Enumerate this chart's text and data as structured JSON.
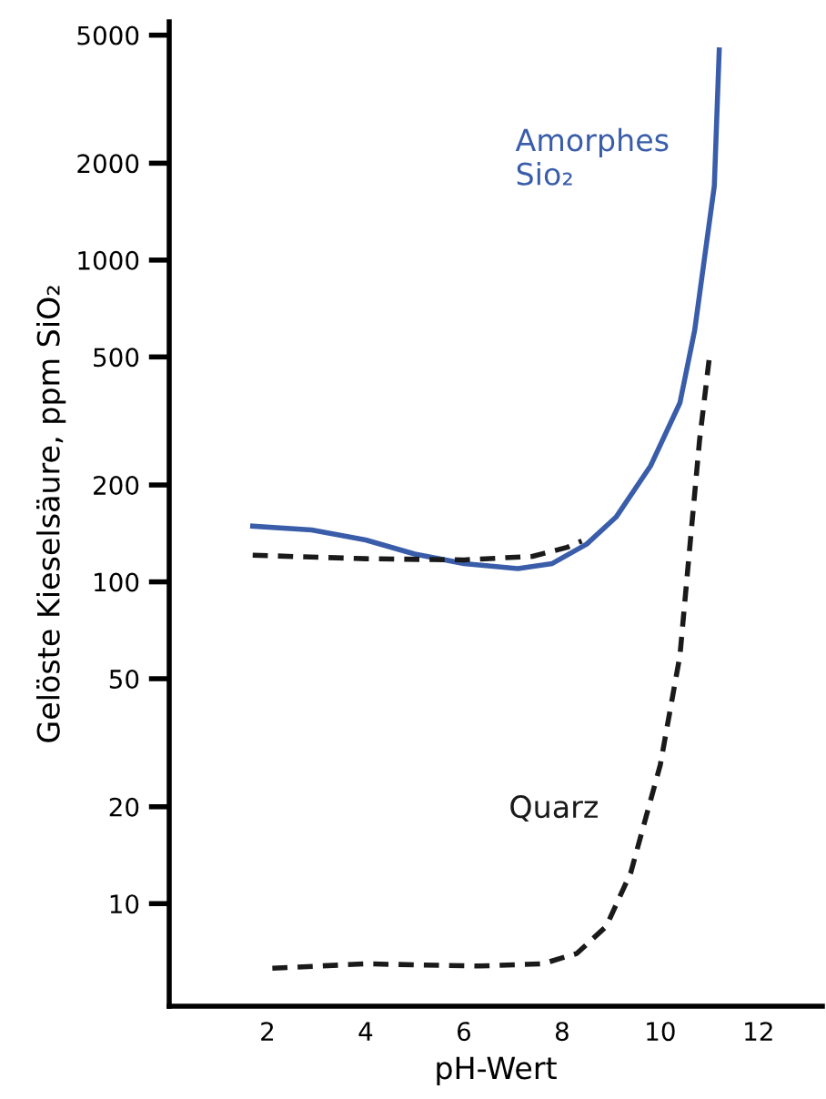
{
  "chart_data": {
    "type": "line",
    "xlabel": "pH-Wert",
    "ylabel": "Gelöste Kieselsäure, ppm SiO₂",
    "log": "y",
    "xlim": [
      0,
      13.3
    ],
    "ylim": [
      4.8,
      5500
    ],
    "xticks": [
      2,
      4,
      6,
      8,
      10,
      12
    ],
    "yticks": [
      10,
      20,
      50,
      100,
      200,
      500,
      1000,
      2000,
      5000
    ],
    "grid": false,
    "legend": false,
    "series": [
      {
        "name": "Amorphes\nSio₂",
        "color": "#3a5daa",
        "line_style": "solid",
        "x": [
          1.7,
          2.9,
          4.0,
          5.0,
          6.0,
          7.1,
          7.8,
          8.5,
          9.1,
          9.8,
          10.4,
          10.7,
          11.1,
          11.2
        ],
        "values": [
          149,
          145,
          135,
          122,
          114,
          110,
          114,
          131,
          159,
          229,
          360,
          605,
          1700,
          4500
        ]
      },
      {
        "color": "#1a1a1a",
        "line_style": "dashed",
        "x": [
          1.7,
          4.0,
          6.0,
          7.4,
          8.1,
          8.4
        ],
        "values": [
          121,
          118,
          117,
          120,
          128,
          134
        ]
      },
      {
        "name": "Quarz",
        "color": "#1a1a1a",
        "line_style": "dashed",
        "x": [
          2.1,
          4.0,
          6.3,
          7.6,
          8.3,
          8.9,
          9.4,
          10.0,
          10.4,
          10.6,
          10.8,
          11.0
        ],
        "values": [
          6.3,
          6.5,
          6.4,
          6.5,
          7.0,
          8.5,
          12.5,
          27,
          59,
          128,
          276,
          500
        ]
      }
    ]
  }
}
